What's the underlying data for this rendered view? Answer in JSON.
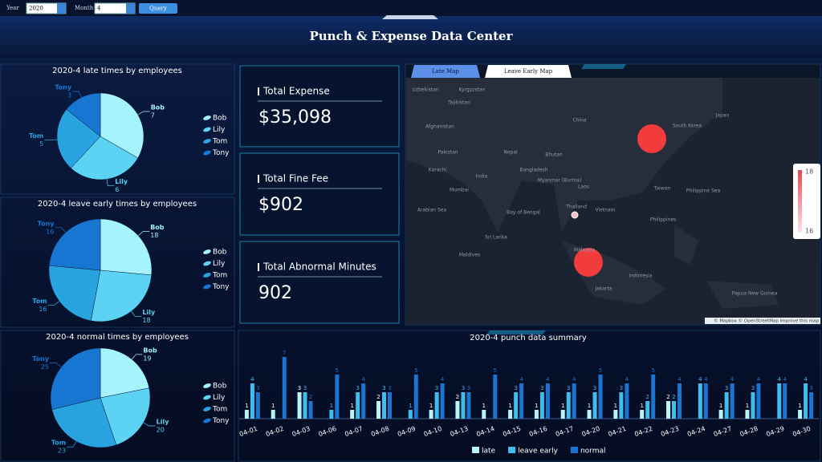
{
  "toolbar": {
    "year_label": "Year",
    "year": "2020",
    "month_label": "Month",
    "month": "4",
    "button": "Query"
  },
  "title": "Punch & Expense Data Center",
  "pies": [
    {
      "type": "pie",
      "title": "2020-4 late times by employees",
      "categories": [
        "Bob",
        "Lily",
        "Tom",
        "Tony"
      ],
      "values": [
        7,
        6,
        5,
        3
      ],
      "colors": [
        "#a5f3fc",
        "#5cd3f2",
        "#29a3df",
        "#1676d2"
      ]
    },
    {
      "type": "pie",
      "title": "2020-4 leave early times by employees",
      "categories": [
        "Bob",
        "Lily",
        "Tom",
        "Tony"
      ],
      "values": [
        18,
        18,
        16,
        16
      ],
      "colors": [
        "#a5f3fc",
        "#5cd3f2",
        "#29a3df",
        "#1676d2"
      ]
    },
    {
      "type": "pie",
      "title": "2020-4 normal times by employees",
      "categories": [
        "Bob",
        "Lily",
        "Tom",
        "Tony"
      ],
      "values": [
        19,
        20,
        23,
        25
      ],
      "colors": [
        "#a5f3fc",
        "#5cd3f2",
        "#29a3df",
        "#1676d2"
      ]
    }
  ],
  "kpis": [
    {
      "label": "Total Expense",
      "value": "$35,098"
    },
    {
      "label": "Total Fine Fee",
      "value": "$902"
    },
    {
      "label": "Total Abnormal Minutes",
      "value": "902"
    }
  ],
  "map": {
    "tabs": [
      "Late Map",
      "Leave Early Map"
    ],
    "legend_ticks": [
      18,
      16
    ],
    "attribution": "© Mapbox © OpenStreetMap Improve this map",
    "labels": [
      "Uzbekistan",
      "Kyrgyzstan",
      "Tajikistan",
      "Afghanistan",
      "Pakistan",
      "Karachi",
      "Nepal",
      "Bhutan",
      "India",
      "Bangladesh",
      "Mumbai",
      "Myanmar (Burma)",
      "Laos",
      "Thailand",
      "Vietnam",
      "Sri Lanka",
      "Maldives",
      "Malaysia",
      "Indonesia",
      "Philippines",
      "China",
      "Japan",
      "South Korea",
      "Taiwan",
      "Arabian Sea",
      "Bay of Bengal",
      "Philippine Sea",
      "Papua New Guinea",
      "Jakarta"
    ]
  },
  "bar_chart": {
    "type": "bar",
    "title": "2020-4 punch data summary",
    "categories": [
      "04-01",
      "04-02",
      "04-03",
      "04-06",
      "04-07",
      "04-08",
      "04-09",
      "04-10",
      "04-13",
      "04-14",
      "04-15",
      "04-16",
      "04-17",
      "04-20",
      "04-21",
      "04-22",
      "04-23",
      "04-24",
      "04-27",
      "04-28",
      "04-29",
      "04-30"
    ],
    "series": [
      {
        "name": "late",
        "color": "#b6f4f8",
        "values": [
          1,
          1,
          3,
          null,
          1,
          2,
          null,
          1,
          2,
          1,
          1,
          1,
          1,
          1,
          1,
          1,
          2,
          null,
          1,
          1,
          null,
          1
        ]
      },
      {
        "name": "leave early",
        "color": "#3fbdec",
        "values": [
          4,
          null,
          3,
          1,
          3,
          3,
          1,
          3,
          3,
          null,
          3,
          3,
          3,
          3,
          3,
          2,
          2,
          4,
          3,
          3,
          4,
          4
        ]
      },
      {
        "name": "normal",
        "color": "#1a74d0",
        "values": [
          3,
          7,
          2,
          5,
          4,
          3,
          5,
          4,
          3,
          5,
          4,
          4,
          4,
          5,
          4,
          5,
          4,
          4,
          4,
          4,
          4,
          3
        ]
      }
    ],
    "ylim": [
      0,
      8
    ]
  }
}
